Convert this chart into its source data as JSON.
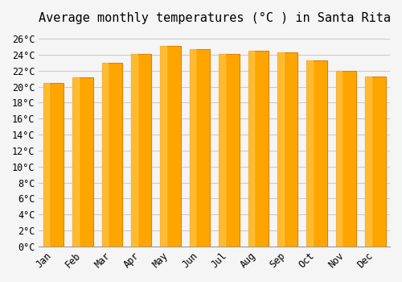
{
  "title": "Average monthly temperatures (°C ) in Santa Rita",
  "months": [
    "Jan",
    "Feb",
    "Mar",
    "Apr",
    "May",
    "Jun",
    "Jul",
    "Aug",
    "Sep",
    "Oct",
    "Nov",
    "Dec"
  ],
  "values": [
    20.5,
    21.2,
    23.0,
    24.1,
    25.1,
    24.7,
    24.1,
    24.5,
    24.3,
    23.3,
    22.0,
    21.3
  ],
  "bar_color": "#FFA500",
  "bar_edge_color": "#E08000",
  "background_color": "#F5F5F5",
  "grid_color": "#CCCCCC",
  "ytick_labels": [
    "0°C",
    "2°C",
    "4°C",
    "6°C",
    "8°C",
    "10°C",
    "12°C",
    "14°C",
    "16°C",
    "18°C",
    "20°C",
    "22°C",
    "24°C",
    "26°C"
  ],
  "ytick_values": [
    0,
    2,
    4,
    6,
    8,
    10,
    12,
    14,
    16,
    18,
    20,
    22,
    24,
    26
  ],
  "ylim": [
    0,
    27
  ],
  "title_fontsize": 11,
  "tick_fontsize": 8.5
}
